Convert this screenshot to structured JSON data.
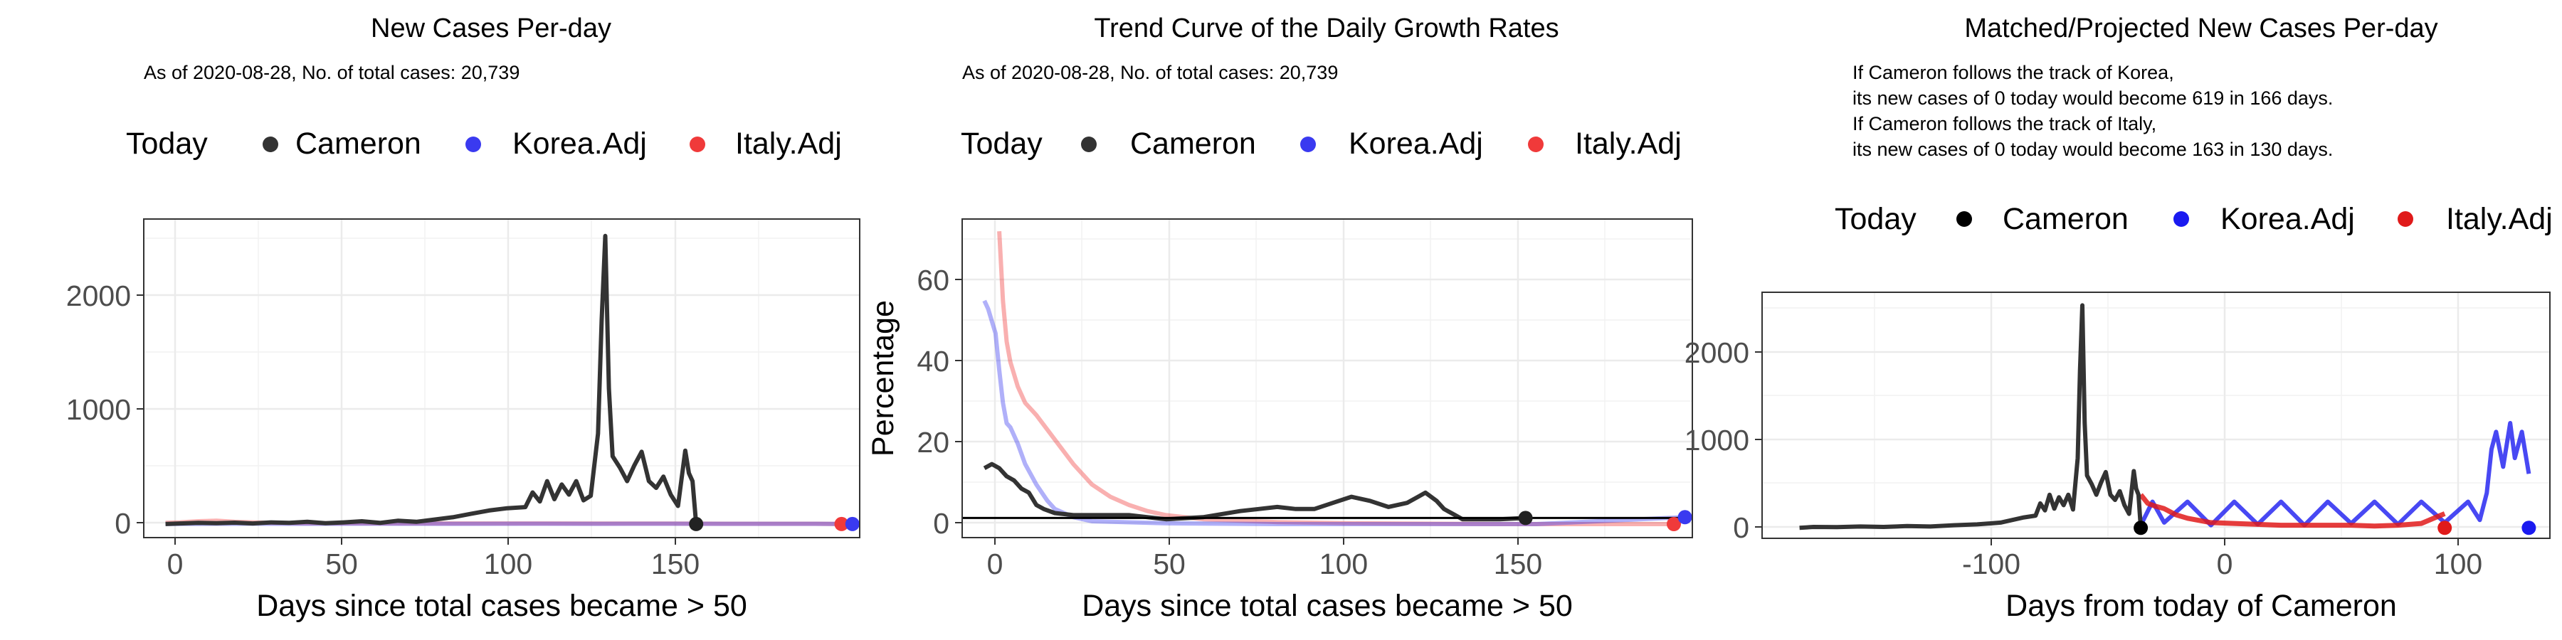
{
  "colors": {
    "cameron": "#333333",
    "korea": "#3a3af0",
    "italy": "#f03a3a",
    "grid": "#ebebeb",
    "axis_text": "#4d4d4d"
  },
  "legend": {
    "today": "Today",
    "series": [
      "Cameron",
      "Korea.Adj",
      "Italy.Adj"
    ]
  },
  "chart_data": [
    {
      "type": "line",
      "title": "New Cases Per-day",
      "subtitle": "As of 2020-08-28, No. of total cases: 20,739",
      "xlabel": "Days since total cases became > 50",
      "ylabel": "",
      "xlim": [
        -5,
        192
      ],
      "ylim": [
        -120,
        2700
      ],
      "xticks": [
        0,
        50,
        100,
        150
      ],
      "yticks": [
        0,
        1000,
        2000
      ],
      "series": [
        {
          "name": "Cameron",
          "x": [
            1,
            5,
            10,
            15,
            20,
            25,
            30,
            35,
            40,
            45,
            50,
            55,
            60,
            65,
            70,
            75,
            80,
            85,
            90,
            95,
            100,
            102,
            104,
            106,
            108,
            110,
            112,
            114,
            116,
            118,
            120,
            121,
            122,
            123,
            124,
            126,
            128,
            130,
            132,
            134,
            136,
            138,
            140,
            142,
            144,
            145,
            146,
            147
          ],
          "y": [
            0,
            5,
            10,
            8,
            12,
            5,
            15,
            10,
            20,
            8,
            15,
            25,
            10,
            30,
            20,
            40,
            60,
            90,
            120,
            140,
            150,
            280,
            200,
            380,
            220,
            350,
            260,
            380,
            210,
            250,
            800,
            1800,
            2550,
            1200,
            600,
            500,
            380,
            520,
            640,
            380,
            320,
            420,
            260,
            160,
            650,
            450,
            380,
            0
          ]
        },
        {
          "name": "Korea.Adj",
          "x": [
            1,
            20,
            40,
            60,
            80,
            100,
            120,
            140,
            160,
            180,
            190
          ],
          "y": [
            0,
            3,
            2,
            3,
            2,
            3,
            2,
            3,
            2,
            2,
            0
          ]
        },
        {
          "name": "Italy.Adj",
          "x": [
            1,
            5,
            10,
            15,
            20,
            25,
            30,
            40,
            60,
            80,
            100,
            120,
            140,
            160,
            180,
            187
          ],
          "y": [
            10,
            15,
            25,
            30,
            20,
            15,
            10,
            8,
            6,
            5,
            5,
            4,
            4,
            3,
            3,
            0
          ]
        }
      ],
      "today_points": [
        {
          "series": "Cameron",
          "x": 147,
          "y": 0
        },
        {
          "series": "Italy.Adj",
          "x": 187,
          "y": 0
        },
        {
          "series": "Korea.Adj",
          "x": 190,
          "y": 0
        }
      ]
    },
    {
      "type": "line",
      "title": "Trend Curve of the Daily Growth Rates",
      "subtitle": "As of 2020-08-28, No. of total cases: 20,739",
      "xlabel": "Days since total cases became > 50",
      "ylabel": "Percentage",
      "xlim": [
        -5,
        192
      ],
      "ylim": [
        -3,
        75
      ],
      "xticks": [
        0,
        50,
        100,
        150
      ],
      "yticks": [
        0,
        20,
        40,
        60
      ],
      "hline": 1.8,
      "series": [
        {
          "name": "Cameron",
          "x": [
            1,
            3,
            5,
            7,
            9,
            11,
            13,
            15,
            17,
            20,
            25,
            30,
            40,
            50,
            60,
            70,
            75,
            80,
            85,
            90,
            95,
            100,
            105,
            110,
            115,
            118,
            120,
            123,
            125,
            128,
            130,
            140,
            147
          ],
          "y": [
            14,
            15,
            14,
            12,
            11,
            9,
            8,
            5,
            4,
            3,
            2.5,
            2.5,
            2.5,
            1.5,
            2,
            3.5,
            4,
            4.5,
            4,
            4,
            5.5,
            7,
            6,
            4.5,
            5.5,
            7,
            8,
            6,
            4,
            2.5,
            1.5,
            1.5,
            1.8
          ]
        },
        {
          "name": "Korea.Adj",
          "x": [
            1,
            2,
            3,
            4,
            5,
            6,
            7,
            8,
            10,
            12,
            15,
            18,
            20,
            25,
            30,
            50,
            80,
            110,
            150,
            190
          ],
          "y": [
            55,
            53,
            50,
            47,
            38,
            30,
            25,
            24,
            20,
            15,
            10,
            6,
            4,
            2,
            1,
            0.5,
            0.3,
            0.3,
            0.3,
            2
          ]
        },
        {
          "name": "Italy.Adj",
          "x": [
            5,
            6,
            7,
            8,
            10,
            12,
            15,
            20,
            25,
            30,
            35,
            40,
            45,
            50,
            60,
            80,
            100,
            140,
            187
          ],
          "y": [
            72,
            55,
            45,
            40,
            34,
            30,
            27,
            21,
            15,
            10,
            7,
            5,
            3.5,
            2.5,
            1.5,
            0.8,
            0.5,
            0.3,
            0.3
          ]
        }
      ],
      "today_points": [
        {
          "series": "Cameron",
          "x": 147,
          "y": 1.8
        },
        {
          "series": "Italy.Adj",
          "x": 187,
          "y": 0.3
        },
        {
          "series": "Korea.Adj",
          "x": 190,
          "y": 2
        }
      ]
    },
    {
      "type": "line",
      "title": "Matched/Projected New Cases Per-day",
      "annotation_lines": [
        "If Cameron follows the track of Korea,",
        "its new cases of 0 today would become 619 in 166 days.",
        "If Cameron follows the track of Italy,",
        "its new cases of 0 today would become 163 in 130 days."
      ],
      "xlabel": "Days from today of Cameron",
      "ylabel": "",
      "xlim": [
        -162,
        175
      ],
      "ylim": [
        -120,
        2700
      ],
      "xticks": [
        -100,
        0,
        100
      ],
      "yticks": [
        0,
        1000,
        2000
      ],
      "series": [
        {
          "name": "Cameron",
          "x": [
            -146,
            -140,
            -130,
            -120,
            -110,
            -100,
            -90,
            -80,
            -70,
            -60,
            -50,
            -45,
            -43,
            -41,
            -39,
            -37,
            -35,
            -33,
            -31,
            -29,
            -27,
            -26,
            -25,
            -24,
            -23,
            -21,
            -19,
            -17,
            -15,
            -13,
            -11,
            -9,
            -7,
            -5,
            -3,
            -2,
            -1,
            0
          ],
          "y": [
            0,
            10,
            8,
            15,
            10,
            20,
            15,
            30,
            40,
            60,
            120,
            140,
            280,
            200,
            380,
            220,
            350,
            260,
            380,
            210,
            800,
            1800,
            2550,
            1200,
            600,
            500,
            380,
            520,
            640,
            380,
            320,
            420,
            260,
            160,
            650,
            450,
            380,
            0
          ]
        },
        {
          "name": "Korea.Adj",
          "x": [
            0,
            5,
            10,
            20,
            30,
            40,
            50,
            60,
            70,
            80,
            90,
            100,
            110,
            120,
            130,
            140,
            145,
            148,
            150,
            152,
            155,
            158,
            160,
            163,
            166
          ],
          "y": [
            30,
            300,
            60,
            300,
            30,
            300,
            40,
            300,
            30,
            300,
            50,
            300,
            40,
            300,
            60,
            300,
            90,
            400,
            900,
            1100,
            700,
            1200,
            800,
            1100,
            619
          ]
        },
        {
          "name": "Italy.Adj",
          "x": [
            0,
            3,
            6,
            10,
            15,
            20,
            30,
            40,
            50,
            60,
            70,
            80,
            90,
            100,
            110,
            120,
            130
          ],
          "y": [
            380,
            280,
            250,
            220,
            150,
            110,
            60,
            50,
            40,
            30,
            30,
            30,
            30,
            20,
            30,
            50,
            163
          ]
        }
      ],
      "today_points": [
        {
          "series": "Cameron",
          "x": 0,
          "y": 0
        },
        {
          "series": "Italy.Adj",
          "x": 130,
          "y": 0
        },
        {
          "series": "Korea.Adj",
          "x": 166,
          "y": 0
        }
      ]
    }
  ]
}
